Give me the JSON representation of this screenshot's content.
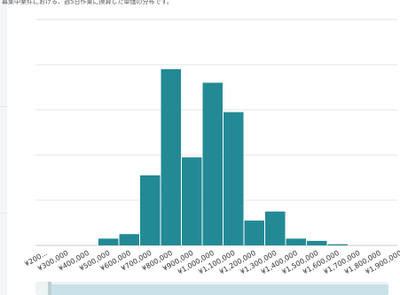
{
  "caption": "募集中案件における、週5日作業に換算した単価の分布です。",
  "colors": {
    "bar": "#238a95",
    "grid": "#e6e6e6",
    "axis": "#cccccc",
    "slider": "#c9e2e7"
  },
  "chart_data": {
    "type": "bar",
    "title": "",
    "xlabel": "",
    "ylabel": "",
    "categories": [
      "¥200...",
      "¥300,000",
      "¥400,000",
      "¥500,000",
      "¥600,000",
      "¥700,000",
      "¥800,000",
      "¥900,000",
      "¥1,000,000",
      "¥1,100,000",
      "¥1,200,000",
      "¥1,300,000",
      "¥1,400,000",
      "¥1,500,000",
      "¥1,600,000",
      "¥1,700,000",
      "¥1,800,000",
      "¥1,900,000"
    ],
    "values": [
      0,
      0,
      0,
      3,
      5,
      31,
      78,
      39,
      72,
      59,
      11,
      15,
      3,
      2,
      0.5,
      0,
      0,
      0
    ],
    "ylim": [
      0,
      100
    ],
    "grid": true,
    "legend": "none"
  }
}
